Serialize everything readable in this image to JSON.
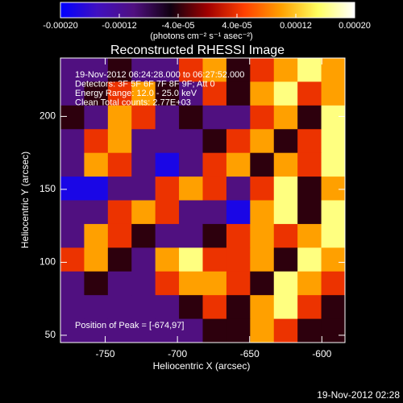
{
  "chart_data": {
    "type": "heatmap",
    "title": "Reconstructed RHESSI Image",
    "x_label": "Heliocentric X (arcsec)",
    "y_label": "Heliocentric Y (arcsec)",
    "xlim": [
      -781,
      -584
    ],
    "xticks": [
      -750,
      -700,
      -650,
      -600
    ],
    "ylim": [
      45,
      240
    ],
    "yticks": [
      50,
      100,
      150,
      200
    ],
    "colorbar_label": "(photons cm⁻² s⁻¹ asec⁻²)",
    "clim": [
      -0.0002,
      0.0002
    ],
    "colorbar_ticks": [
      {
        "value": -0.0002,
        "label": "-0.00020"
      },
      -0.00012,
      {
        "value": -4e-05,
        "label": "-4.0e-05"
      },
      {
        "value": 4e-05,
        "label": "4.0e-05"
      },
      0.00012,
      {
        "value": 0.0002,
        "label": "0.00020"
      }
    ],
    "colorscale": [
      "#0000ff",
      "#4010c0",
      "#501080",
      "#100010",
      "#a00000",
      "#ff4000",
      "#ffa000",
      "#ffff60",
      "#ffffff"
    ],
    "annotations": [
      "19-Nov-2012 06:24:28.000 to 06:27:52.000",
      "Detectors: 3F 5F 6F 7F 8F 9F; Att 0",
      "Energy Range: 12.0 - 25.0 keV",
      "Clean    Total counts: 2.77E+03"
    ],
    "peak_note": "Position of Peak = [-674,97]",
    "footer": "19-Nov-2012 02:28",
    "z": [
      [
        -0.0001,
        -0.0001,
        -4e-05,
        -0.0001,
        -0.0001,
        4e-05,
        0.0001,
        -4e-05,
        4e-05,
        0.0001,
        0.00016,
        0.0001
      ],
      [
        -0.0001,
        -4e-05,
        4e-05,
        0.0001,
        -4e-05,
        -0.0001,
        4e-05,
        -4e-05,
        0.0001,
        0.00016,
        4e-05,
        0.0001
      ],
      [
        -4e-05,
        -0.0001,
        0.0001,
        4e-05,
        -0.0001,
        -4e-05,
        -0.0001,
        -0.0001,
        4e-05,
        0.0001,
        -4e-05,
        0.00016
      ],
      [
        -0.0001,
        4e-05,
        0.0001,
        -0.0001,
        -0.0001,
        -0.0001,
        -4e-05,
        4e-05,
        0.0001,
        -4e-05,
        4e-05,
        0.00016
      ],
      [
        -0.0001,
        0.0001,
        4e-05,
        -0.0001,
        -0.00018,
        -0.0001,
        4e-05,
        0.0001,
        -4e-05,
        0.0001,
        4e-05,
        0.00016
      ],
      [
        -0.00018,
        -0.00018,
        -0.0001,
        -0.0001,
        4e-05,
        0.0001,
        4e-05,
        -0.0001,
        4e-05,
        0.00016,
        -4e-05,
        0.0001
      ],
      [
        -0.0001,
        -0.0001,
        4e-05,
        0.0001,
        4e-05,
        -0.0001,
        -0.0001,
        -0.00018,
        0.0001,
        0.00016,
        -4e-05,
        0.00016
      ],
      [
        -0.0001,
        0.0001,
        4e-05,
        -4e-05,
        -0.0001,
        -0.0001,
        -4e-05,
        4e-05,
        0.0001,
        4e-05,
        0.0001,
        0.00016
      ],
      [
        4e-05,
        0.0001,
        -4e-05,
        -0.0001,
        0.0001,
        0.00016,
        4e-05,
        4e-05,
        0.0001,
        -4e-05,
        0.00016,
        0.0001
      ],
      [
        -0.0001,
        -4e-05,
        -0.0001,
        -0.0001,
        4e-05,
        0.0001,
        0.0001,
        4e-05,
        -4e-05,
        0.00016,
        0.0001,
        4e-05
      ],
      [
        -0.0001,
        -0.0001,
        -0.0001,
        -0.0001,
        -0.0001,
        -4e-05,
        4e-05,
        -4e-05,
        0.0001,
        0.00016,
        4e-05,
        -4e-05
      ],
      [
        -0.0001,
        -0.0001,
        -0.0001,
        -0.0001,
        -0.0001,
        -0.0001,
        -4e-05,
        -4e-05,
        0.0001,
        4e-05,
        -4e-05,
        -4e-05
      ]
    ]
  }
}
